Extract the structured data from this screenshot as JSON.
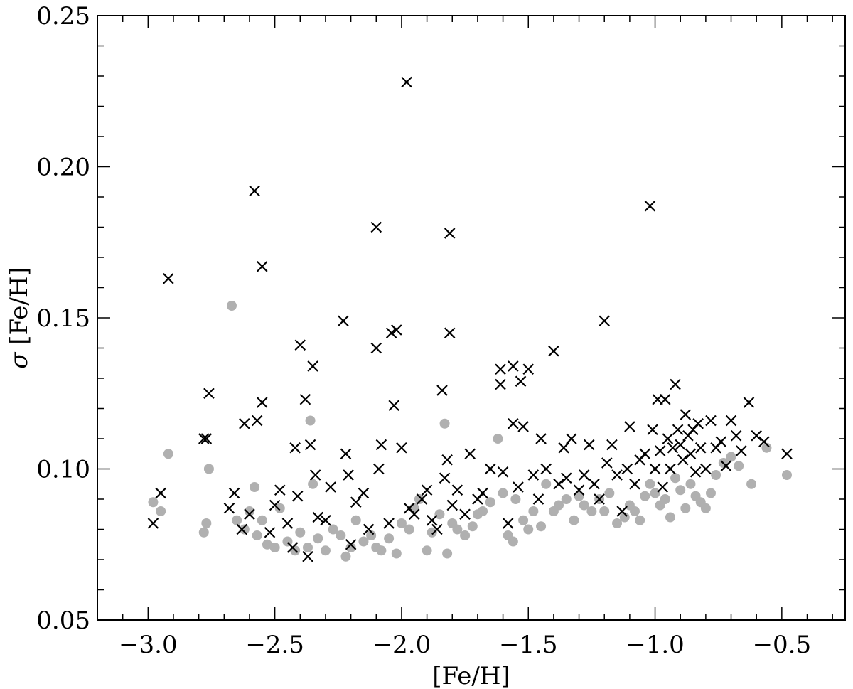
{
  "chart_data": {
    "type": "scatter",
    "xlabel": "[Fe/H]",
    "ylabel_symbol": "σ",
    "ylabel_text": " [Fe/H]",
    "xlim": [
      -3.2,
      -0.25
    ],
    "ylim": [
      0.05,
      0.25
    ],
    "grid": false,
    "x_ticks": [
      -3.0,
      -2.5,
      -2.0,
      -1.5,
      -1.0,
      -0.5
    ],
    "x_tick_labels": [
      "−3.0",
      "−2.5",
      "−2.0",
      "−1.5",
      "−1.0",
      "−0.5"
    ],
    "y_ticks": [
      0.05,
      0.1,
      0.15,
      0.2,
      0.25
    ],
    "y_tick_labels": [
      "0.05",
      "0.10",
      "0.15",
      "0.20",
      "0.25"
    ],
    "x_minor_step": 0.1,
    "y_minor_step": 0.01,
    "colors": {
      "grey_points": "#b0b0b0",
      "cross_points": "#000000",
      "axes": "#000000"
    },
    "series": [
      {
        "marker": "circle",
        "color": "#b0b0b0",
        "points": [
          [
            -2.98,
            0.089
          ],
          [
            -2.95,
            0.086
          ],
          [
            -2.92,
            0.105
          ],
          [
            -2.78,
            0.079
          ],
          [
            -2.77,
            0.082
          ],
          [
            -2.76,
            0.1
          ],
          [
            -2.67,
            0.154
          ],
          [
            -2.65,
            0.083
          ],
          [
            -2.62,
            0.08
          ],
          [
            -2.6,
            0.086
          ],
          [
            -2.58,
            0.094
          ],
          [
            -2.57,
            0.078
          ],
          [
            -2.55,
            0.083
          ],
          [
            -2.53,
            0.075
          ],
          [
            -2.5,
            0.074
          ],
          [
            -2.48,
            0.087
          ],
          [
            -2.45,
            0.076
          ],
          [
            -2.42,
            0.073
          ],
          [
            -2.4,
            0.079
          ],
          [
            -2.37,
            0.074
          ],
          [
            -2.36,
            0.116
          ],
          [
            -2.35,
            0.095
          ],
          [
            -2.33,
            0.077
          ],
          [
            -2.3,
            0.073
          ],
          [
            -2.27,
            0.08
          ],
          [
            -2.24,
            0.078
          ],
          [
            -2.22,
            0.071
          ],
          [
            -2.2,
            0.074
          ],
          [
            -2.18,
            0.083
          ],
          [
            -2.15,
            0.076
          ],
          [
            -2.12,
            0.078
          ],
          [
            -2.1,
            0.074
          ],
          [
            -2.08,
            0.073
          ],
          [
            -2.05,
            0.077
          ],
          [
            -2.02,
            0.072
          ],
          [
            -2.0,
            0.082
          ],
          [
            -1.97,
            0.08
          ],
          [
            -1.95,
            0.087
          ],
          [
            -1.93,
            0.09
          ],
          [
            -1.9,
            0.073
          ],
          [
            -1.88,
            0.079
          ],
          [
            -1.85,
            0.085
          ],
          [
            -1.83,
            0.115
          ],
          [
            -1.82,
            0.072
          ],
          [
            -1.8,
            0.082
          ],
          [
            -1.78,
            0.08
          ],
          [
            -1.75,
            0.078
          ],
          [
            -1.72,
            0.081
          ],
          [
            -1.7,
            0.085
          ],
          [
            -1.68,
            0.086
          ],
          [
            -1.65,
            0.089
          ],
          [
            -1.62,
            0.11
          ],
          [
            -1.6,
            0.092
          ],
          [
            -1.58,
            0.078
          ],
          [
            -1.56,
            0.076
          ],
          [
            -1.55,
            0.09
          ],
          [
            -1.52,
            0.083
          ],
          [
            -1.5,
            0.08
          ],
          [
            -1.48,
            0.086
          ],
          [
            -1.45,
            0.081
          ],
          [
            -1.43,
            0.095
          ],
          [
            -1.4,
            0.086
          ],
          [
            -1.38,
            0.088
          ],
          [
            -1.35,
            0.09
          ],
          [
            -1.32,
            0.083
          ],
          [
            -1.3,
            0.091
          ],
          [
            -1.28,
            0.088
          ],
          [
            -1.25,
            0.086
          ],
          [
            -1.22,
            0.09
          ],
          [
            -1.2,
            0.086
          ],
          [
            -1.18,
            0.092
          ],
          [
            -1.15,
            0.082
          ],
          [
            -1.12,
            0.084
          ],
          [
            -1.1,
            0.088
          ],
          [
            -1.08,
            0.086
          ],
          [
            -1.06,
            0.083
          ],
          [
            -1.04,
            0.091
          ],
          [
            -1.02,
            0.095
          ],
          [
            -1.0,
            0.092
          ],
          [
            -0.98,
            0.088
          ],
          [
            -0.96,
            0.09
          ],
          [
            -0.94,
            0.084
          ],
          [
            -0.92,
            0.097
          ],
          [
            -0.9,
            0.093
          ],
          [
            -0.88,
            0.087
          ],
          [
            -0.86,
            0.095
          ],
          [
            -0.84,
            0.091
          ],
          [
            -0.82,
            0.089
          ],
          [
            -0.8,
            0.087
          ],
          [
            -0.78,
            0.092
          ],
          [
            -0.76,
            0.098
          ],
          [
            -0.73,
            0.102
          ],
          [
            -0.7,
            0.104
          ],
          [
            -0.67,
            0.101
          ],
          [
            -0.62,
            0.095
          ],
          [
            -0.56,
            0.107
          ],
          [
            -0.48,
            0.098
          ]
        ]
      },
      {
        "marker": "cross",
        "color": "#000000",
        "points": [
          [
            -2.98,
            0.082
          ],
          [
            -2.95,
            0.092
          ],
          [
            -2.92,
            0.163
          ],
          [
            -2.78,
            0.11
          ],
          [
            -2.77,
            0.11
          ],
          [
            -2.76,
            0.125
          ],
          [
            -2.68,
            0.087
          ],
          [
            -2.66,
            0.092
          ],
          [
            -2.63,
            0.08
          ],
          [
            -2.62,
            0.115
          ],
          [
            -2.6,
            0.085
          ],
          [
            -2.58,
            0.192
          ],
          [
            -2.57,
            0.116
          ],
          [
            -2.55,
            0.167
          ],
          [
            -2.55,
            0.122
          ],
          [
            -2.52,
            0.079
          ],
          [
            -2.5,
            0.088
          ],
          [
            -2.48,
            0.093
          ],
          [
            -2.45,
            0.082
          ],
          [
            -2.43,
            0.074
          ],
          [
            -2.42,
            0.107
          ],
          [
            -2.41,
            0.091
          ],
          [
            -2.4,
            0.141
          ],
          [
            -2.38,
            0.123
          ],
          [
            -2.37,
            0.071
          ],
          [
            -2.36,
            0.108
          ],
          [
            -2.35,
            0.134
          ],
          [
            -2.34,
            0.098
          ],
          [
            -2.33,
            0.084
          ],
          [
            -2.3,
            0.083
          ],
          [
            -2.28,
            0.094
          ],
          [
            -2.23,
            0.149
          ],
          [
            -2.22,
            0.105
          ],
          [
            -2.21,
            0.098
          ],
          [
            -2.2,
            0.075
          ],
          [
            -2.18,
            0.089
          ],
          [
            -2.15,
            0.092
          ],
          [
            -2.13,
            0.08
          ],
          [
            -2.1,
            0.18
          ],
          [
            -2.1,
            0.14
          ],
          [
            -2.09,
            0.1
          ],
          [
            -2.08,
            0.108
          ],
          [
            -2.05,
            0.082
          ],
          [
            -2.04,
            0.145
          ],
          [
            -2.03,
            0.121
          ],
          [
            -2.02,
            0.146
          ],
          [
            -2.0,
            0.107
          ],
          [
            -1.98,
            0.228
          ],
          [
            -1.97,
            0.087
          ],
          [
            -1.95,
            0.085
          ],
          [
            -1.92,
            0.09
          ],
          [
            -1.9,
            0.093
          ],
          [
            -1.88,
            0.083
          ],
          [
            -1.86,
            0.08
          ],
          [
            -1.84,
            0.126
          ],
          [
            -1.83,
            0.097
          ],
          [
            -1.82,
            0.103
          ],
          [
            -1.81,
            0.145
          ],
          [
            -1.81,
            0.178
          ],
          [
            -1.8,
            0.088
          ],
          [
            -1.78,
            0.093
          ],
          [
            -1.75,
            0.085
          ],
          [
            -1.73,
            0.105
          ],
          [
            -1.7,
            0.09
          ],
          [
            -1.68,
            0.092
          ],
          [
            -1.65,
            0.1
          ],
          [
            -1.61,
            0.133
          ],
          [
            -1.61,
            0.128
          ],
          [
            -1.6,
            0.099
          ],
          [
            -1.58,
            0.082
          ],
          [
            -1.56,
            0.134
          ],
          [
            -1.56,
            0.115
          ],
          [
            -1.54,
            0.094
          ],
          [
            -1.53,
            0.129
          ],
          [
            -1.52,
            0.114
          ],
          [
            -1.5,
            0.133
          ],
          [
            -1.48,
            0.098
          ],
          [
            -1.46,
            0.09
          ],
          [
            -1.45,
            0.11
          ],
          [
            -1.43,
            0.1
          ],
          [
            -1.4,
            0.139
          ],
          [
            -1.38,
            0.095
          ],
          [
            -1.36,
            0.107
          ],
          [
            -1.35,
            0.097
          ],
          [
            -1.33,
            0.11
          ],
          [
            -1.3,
            0.093
          ],
          [
            -1.28,
            0.098
          ],
          [
            -1.26,
            0.108
          ],
          [
            -1.24,
            0.095
          ],
          [
            -1.22,
            0.09
          ],
          [
            -1.2,
            0.149
          ],
          [
            -1.19,
            0.102
          ],
          [
            -1.17,
            0.108
          ],
          [
            -1.15,
            0.098
          ],
          [
            -1.13,
            0.086
          ],
          [
            -1.11,
            0.1
          ],
          [
            -1.1,
            0.114
          ],
          [
            -1.08,
            0.095
          ],
          [
            -1.06,
            0.103
          ],
          [
            -1.04,
            0.105
          ],
          [
            -1.02,
            0.187
          ],
          [
            -1.01,
            0.113
          ],
          [
            -1.0,
            0.1
          ],
          [
            -0.99,
            0.123
          ],
          [
            -0.98,
            0.106
          ],
          [
            -0.97,
            0.094
          ],
          [
            -0.96,
            0.123
          ],
          [
            -0.95,
            0.11
          ],
          [
            -0.94,
            0.1
          ],
          [
            -0.93,
            0.107
          ],
          [
            -0.92,
            0.128
          ],
          [
            -0.91,
            0.113
          ],
          [
            -0.9,
            0.108
          ],
          [
            -0.89,
            0.103
          ],
          [
            -0.88,
            0.118
          ],
          [
            -0.87,
            0.111
          ],
          [
            -0.86,
            0.105
          ],
          [
            -0.85,
            0.113
          ],
          [
            -0.84,
            0.099
          ],
          [
            -0.83,
            0.115
          ],
          [
            -0.82,
            0.107
          ],
          [
            -0.8,
            0.1
          ],
          [
            -0.78,
            0.116
          ],
          [
            -0.76,
            0.107
          ],
          [
            -0.74,
            0.109
          ],
          [
            -0.72,
            0.101
          ],
          [
            -0.7,
            0.116
          ],
          [
            -0.68,
            0.111
          ],
          [
            -0.66,
            0.106
          ],
          [
            -0.63,
            0.122
          ],
          [
            -0.6,
            0.111
          ],
          [
            -0.57,
            0.109
          ],
          [
            -0.48,
            0.105
          ]
        ]
      }
    ]
  }
}
